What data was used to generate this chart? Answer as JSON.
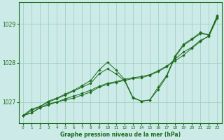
{
  "background_color": "#cceae7",
  "plot_bg_color": "#cceae7",
  "grid_color": "#99ccbb",
  "line_color": "#1a6b1a",
  "marker_color": "#1a6b1a",
  "title": "Graphe pression niveau de la mer (hPa)",
  "xlim": [
    -0.5,
    23.5
  ],
  "ylim": [
    1026.45,
    1029.55
  ],
  "yticks": [
    1027,
    1028,
    1029
  ],
  "xticks": [
    0,
    1,
    2,
    3,
    4,
    5,
    6,
    7,
    8,
    9,
    10,
    11,
    12,
    13,
    14,
    15,
    16,
    17,
    18,
    19,
    20,
    21,
    22,
    23
  ],
  "series": [
    [
      1026.65,
      1026.72,
      1026.85,
      1026.95,
      1027.0,
      1027.08,
      1027.15,
      1027.22,
      1027.3,
      1027.4,
      1027.48,
      1027.52,
      1027.58,
      1027.62,
      1027.65,
      1027.7,
      1027.8,
      1027.92,
      1028.05,
      1028.2,
      1028.38,
      1028.55,
      1028.7,
      1029.2
    ],
    [
      1026.65,
      1026.72,
      1026.85,
      1026.92,
      1027.0,
      1027.05,
      1027.1,
      1027.18,
      1027.25,
      1027.38,
      1027.45,
      1027.5,
      1027.55,
      1027.6,
      1027.62,
      1027.68,
      1027.78,
      1027.9,
      1028.1,
      1028.28,
      1028.4,
      1028.58,
      1028.68,
      1029.15
    ],
    [
      1026.65,
      1026.78,
      1026.88,
      1027.0,
      1027.08,
      1027.18,
      1027.28,
      1027.38,
      1027.48,
      1027.72,
      1027.85,
      1027.72,
      1027.55,
      1027.1,
      1027.02,
      1027.05,
      1027.32,
      1027.65,
      1028.15,
      1028.45,
      1028.6,
      1028.75,
      1028.72,
      1029.18
    ],
    [
      1026.65,
      1026.82,
      1026.88,
      1027.02,
      1027.1,
      1027.2,
      1027.3,
      1027.42,
      1027.55,
      1027.82,
      1028.02,
      1027.82,
      1027.58,
      1027.12,
      1027.02,
      1027.05,
      1027.38,
      1027.68,
      1028.18,
      1028.48,
      1028.62,
      1028.78,
      1028.72,
      1029.22
    ]
  ]
}
